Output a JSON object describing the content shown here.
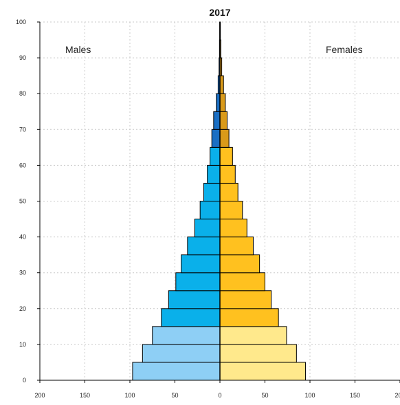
{
  "chart_data": {
    "type": "bar",
    "orientation": "horizontal",
    "title": "2017",
    "left_label": "Males",
    "right_label": "Females",
    "x_ticks": [
      "200",
      "150",
      "100",
      "50",
      "0",
      "50",
      "100",
      "150",
      "200"
    ],
    "y_ticks": [
      "0",
      "10",
      "20",
      "30",
      "40",
      "50",
      "60",
      "70",
      "80",
      "90",
      "100"
    ],
    "xlim": [
      -200,
      200
    ],
    "ylim": [
      0,
      100
    ],
    "grid": true,
    "age_groups": [
      {
        "age": 0,
        "males": 97,
        "females": 95
      },
      {
        "age": 5,
        "males": 86,
        "females": 85
      },
      {
        "age": 10,
        "males": 75,
        "females": 74
      },
      {
        "age": 15,
        "males": 65,
        "females": 65
      },
      {
        "age": 20,
        "males": 57,
        "females": 57
      },
      {
        "age": 25,
        "males": 49,
        "females": 50
      },
      {
        "age": 30,
        "males": 43,
        "females": 44
      },
      {
        "age": 35,
        "males": 36,
        "females": 37
      },
      {
        "age": 40,
        "males": 28,
        "females": 30
      },
      {
        "age": 45,
        "males": 22,
        "females": 25
      },
      {
        "age": 50,
        "males": 18,
        "females": 20
      },
      {
        "age": 55,
        "males": 14,
        "females": 17
      },
      {
        "age": 60,
        "males": 11,
        "females": 14
      },
      {
        "age": 65,
        "males": 9,
        "females": 10
      },
      {
        "age": 70,
        "males": 7,
        "females": 8
      },
      {
        "age": 75,
        "males": 4,
        "females": 6
      },
      {
        "age": 80,
        "males": 2,
        "females": 4
      },
      {
        "age": 85,
        "males": 1,
        "females": 2
      },
      {
        "age": 90,
        "males": 0.5,
        "females": 1
      },
      {
        "age": 95,
        "males": 0.3,
        "females": 0.5
      }
    ],
    "colors": {
      "males_child": "#8ecff5",
      "males_adult": "#0ab0ea",
      "males_senior": "#1a6fc4",
      "females_child": "#ffe98c",
      "females_adult": "#ffc11f",
      "females_senior": "#d99a1a",
      "outline": "#000000",
      "grid": "#c8c8c8"
    }
  }
}
